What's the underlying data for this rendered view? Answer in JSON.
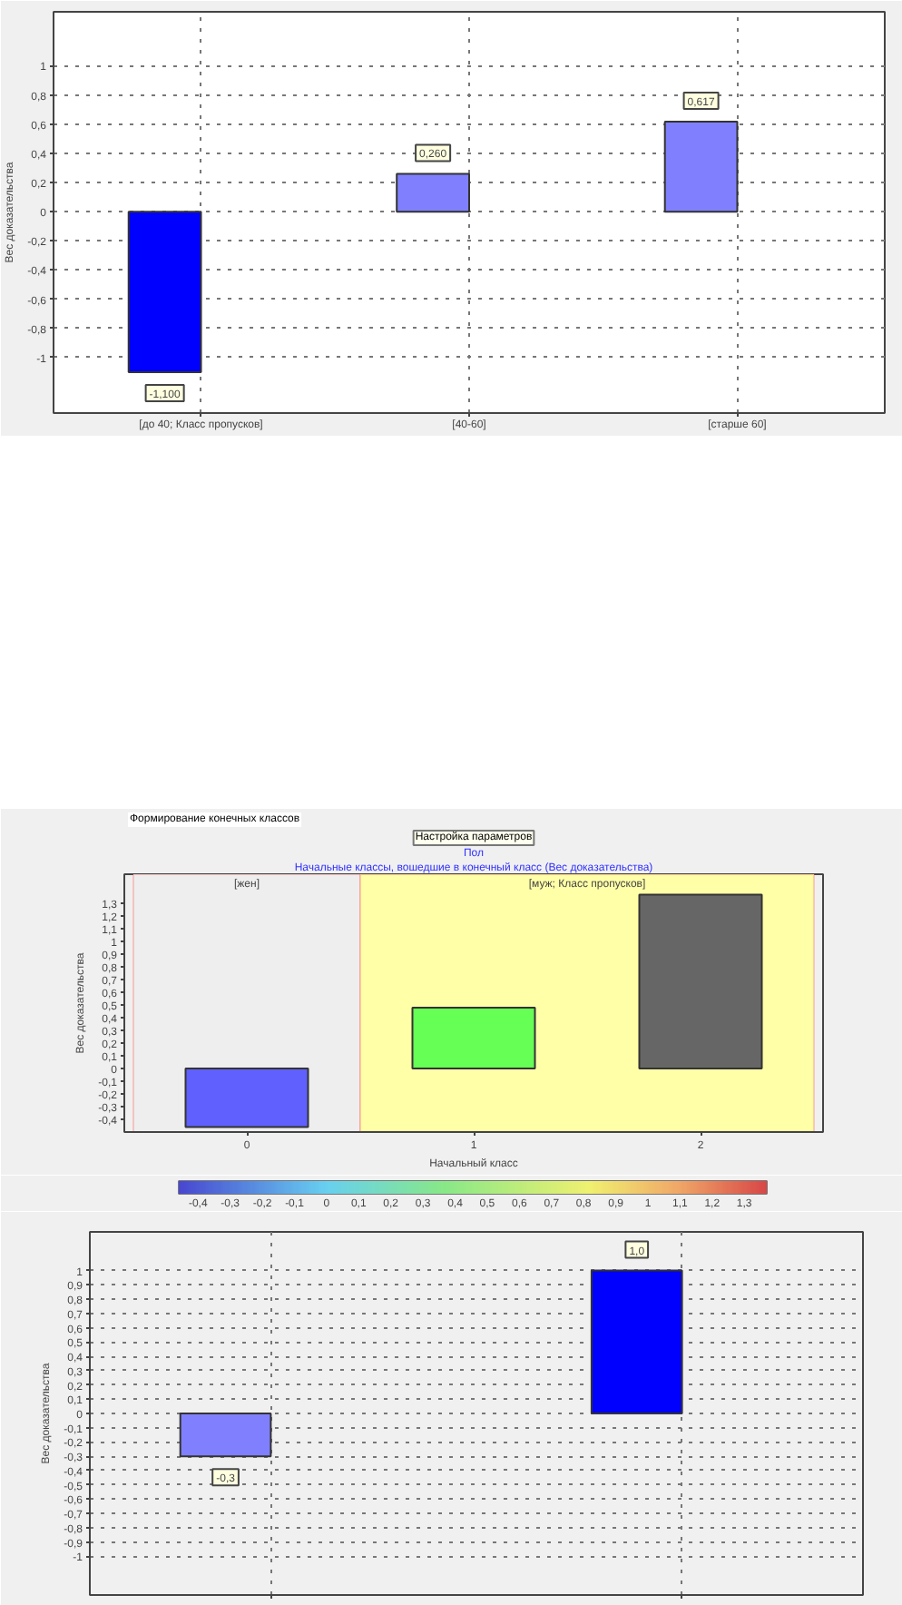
{
  "chart_data": [
    {
      "type": "bar",
      "categories": [
        "[до 40; Класс пропусков]",
        "[40-60]",
        "[старше 60]"
      ],
      "values": [
        -1.1,
        0.26,
        0.617
      ],
      "colors": [
        "#0000ff",
        "#8080ff",
        "#8080ff"
      ],
      "value_labels": [
        "-1,100",
        "0,260",
        "0,617"
      ],
      "ylabel": "Вес доказательства",
      "ylim": [
        -1.38,
        1.37
      ],
      "yticks": [
        -1,
        {
          "value": -0.8,
          "label": "-0,8"
        },
        {
          "value": -0.6,
          "label": "-0,6"
        },
        {
          "value": -0.4,
          "label": "-0,4"
        },
        {
          "value": -0.2,
          "label": "-0,2"
        },
        0,
        {
          "value": 0.2,
          "label": "0,2"
        },
        {
          "value": 0.4,
          "label": "0,4"
        },
        {
          "value": 0.6,
          "label": "0,6"
        },
        {
          "value": 0.8,
          "label": "0,8"
        },
        1
      ],
      "grid": true
    },
    {
      "type": "bar",
      "title": "Пол",
      "subtitle": "Начальные классы, вошедшие в конечный класс (Вес доказательства)",
      "annotations": [
        "Формирование конечных классов",
        "Настройка параметров"
      ],
      "x": [
        0,
        1,
        2
      ],
      "values": [
        -0.46,
        0.48,
        1.37
      ],
      "colors": [
        "#6060ff",
        "#66ff55",
        "#666666"
      ],
      "xlabel": "Начальный класс",
      "ylabel": "Вес доказательства",
      "xlim": [
        -0.54,
        2.54
      ],
      "xticks": [
        0,
        1,
        2
      ],
      "ylim": [
        -0.5,
        1.53
      ],
      "yticks": [
        {
          "value": -0.4,
          "label": "-0,4"
        },
        {
          "value": -0.3,
          "label": "-0,3"
        },
        {
          "value": -0.2,
          "label": "-0,2"
        },
        {
          "value": -0.1,
          "label": "-0,1"
        },
        0,
        {
          "value": 0.1,
          "label": "0,1"
        },
        {
          "value": 0.2,
          "label": "0,2"
        },
        {
          "value": 0.3,
          "label": "0,3"
        },
        {
          "value": 0.4,
          "label": "0,4"
        },
        {
          "value": 0.5,
          "label": "0,5"
        },
        {
          "value": 0.6,
          "label": "0,6"
        },
        {
          "value": 0.7,
          "label": "0,7"
        },
        {
          "value": 0.8,
          "label": "0,8"
        },
        {
          "value": 0.9,
          "label": "0,9"
        },
        1,
        {
          "value": 1.1,
          "label": "1,1"
        },
        {
          "value": 1.2,
          "label": "1,2"
        },
        {
          "value": 1.3,
          "label": "1,3"
        }
      ],
      "bands": [
        {
          "axis": "x",
          "from": -0.5,
          "to": 0.5,
          "label": "[жен]",
          "color": "#eeeeee"
        },
        {
          "axis": "x",
          "from": 0.5,
          "to": 2.5,
          "label": "[муж; Класс пропусков]",
          "color": "#ffffa8"
        }
      ],
      "clim": [
        -0.46,
        1.37
      ],
      "cticks": [
        {
          "value": -0.4,
          "label": "-0,4"
        },
        {
          "value": -0.3,
          "label": "-0,3"
        },
        {
          "value": -0.2,
          "label": "-0,2"
        },
        {
          "value": -0.1,
          "label": "-0,1"
        },
        0,
        {
          "value": 0.1,
          "label": "0,1"
        },
        {
          "value": 0.2,
          "label": "0,2"
        },
        {
          "value": 0.3,
          "label": "0,3"
        },
        {
          "value": 0.4,
          "label": "0,4"
        },
        {
          "value": 0.5,
          "label": "0,5"
        },
        {
          "value": 0.6,
          "label": "0,6"
        },
        {
          "value": 0.7,
          "label": "0,7"
        },
        {
          "value": 0.8,
          "label": "0,8"
        },
        {
          "value": 0.9,
          "label": "0,9"
        },
        1,
        {
          "value": 1.1,
          "label": "1,1"
        },
        {
          "value": 1.2,
          "label": "1,2"
        },
        {
          "value": 1.3,
          "label": "1,3"
        }
      ]
    },
    {
      "type": "bar",
      "categories": [
        null,
        null
      ],
      "values": [
        -0.3,
        1.0
      ],
      "colors": [
        "#8080ff",
        "#0000ff"
      ],
      "value_labels": [
        "-0,3",
        "1,0"
      ],
      "ylabel": "Вес доказательства",
      "ylim": [
        -1.27,
        1.27
      ],
      "yticks": [
        -1,
        {
          "value": -0.9,
          "label": "-0,9"
        },
        {
          "value": -0.8,
          "label": "-0,8"
        },
        {
          "value": -0.7,
          "label": "-0,7"
        },
        {
          "value": -0.6,
          "label": "-0,6"
        },
        {
          "value": -0.5,
          "label": "-0,5"
        },
        {
          "value": -0.4,
          "label": "-0,4"
        },
        {
          "value": -0.3,
          "label": "-0,3"
        },
        {
          "value": -0.2,
          "label": "-0,2"
        },
        {
          "value": -0.1,
          "label": "-0,1"
        },
        0,
        {
          "value": 0.1,
          "label": "0,1"
        },
        {
          "value": 0.2,
          "label": "0,2"
        },
        {
          "value": 0.3,
          "label": "0,3"
        },
        {
          "value": 0.4,
          "label": "0,4"
        },
        {
          "value": 0.5,
          "label": "0,5"
        },
        {
          "value": 0.6,
          "label": "0,6"
        },
        {
          "value": 0.7,
          "label": "0,7"
        },
        {
          "value": 0.8,
          "label": "0,8"
        },
        {
          "value": 0.9,
          "label": "0,9"
        },
        1
      ],
      "grid": true
    }
  ]
}
